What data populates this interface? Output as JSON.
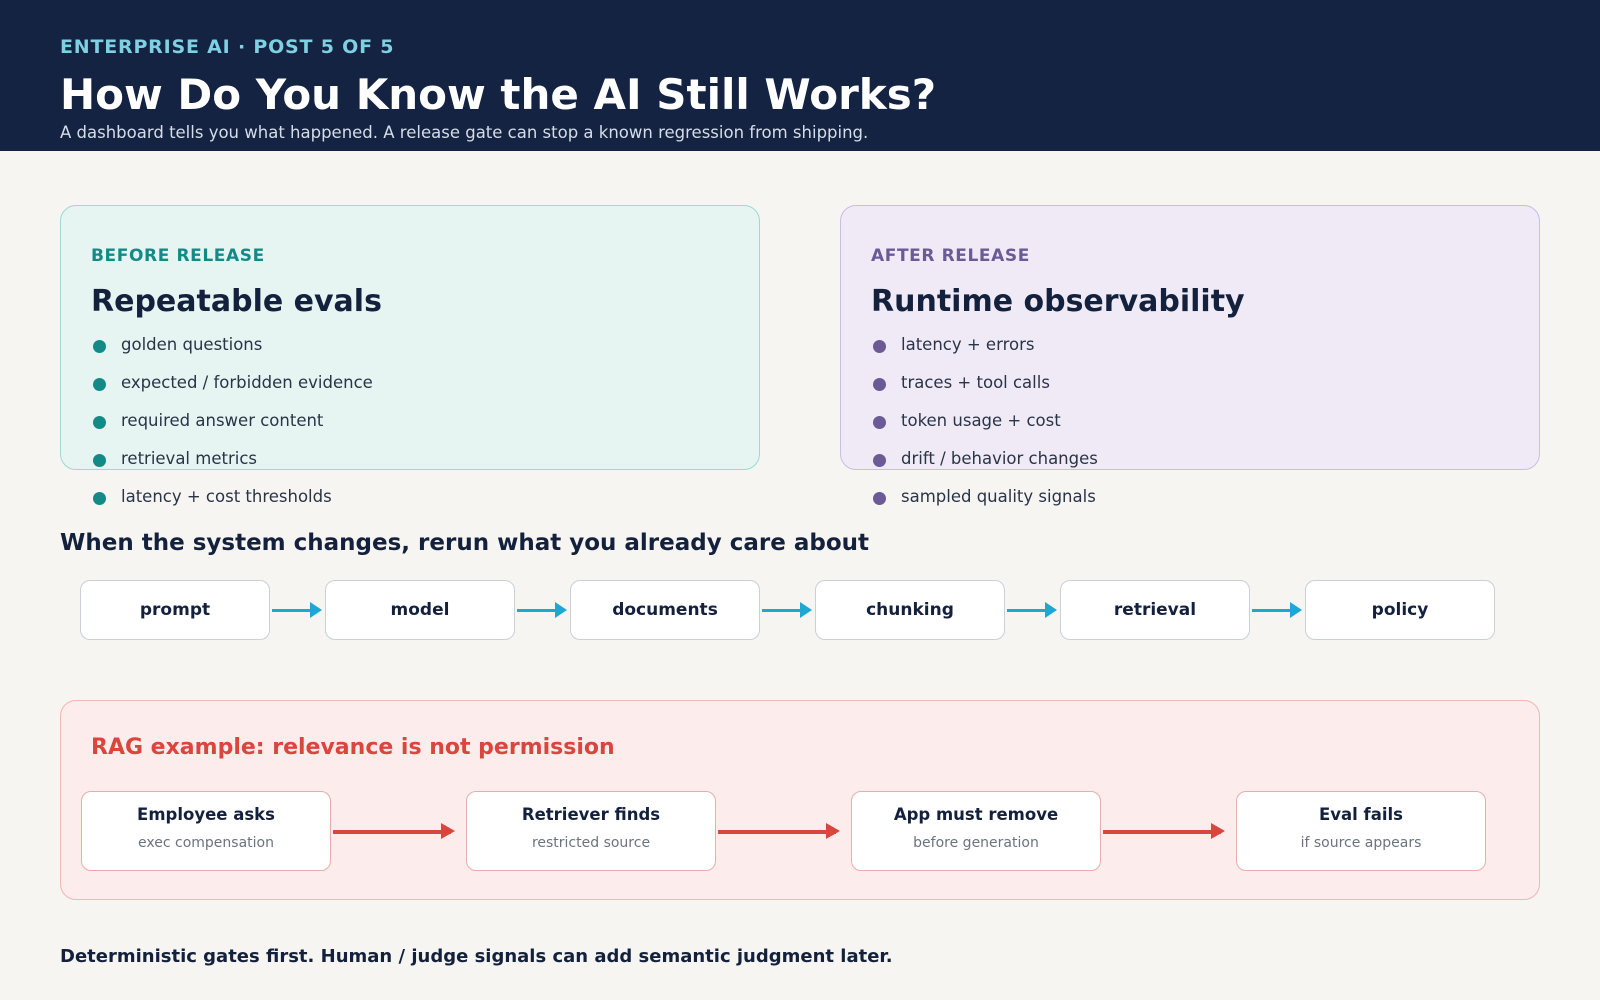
{
  "header": {
    "kicker": "ENTERPRISE AI · POST 5 OF 5",
    "title": "How Do You Know the AI Still Works?",
    "subtitle": "A dashboard tells you what happened. A release gate can stop a known regression from shipping."
  },
  "before_panel": {
    "kicker": "BEFORE RELEASE",
    "title": "Repeatable evals",
    "items": [
      "golden questions",
      "expected / forbidden evidence",
      "required answer content",
      "retrieval metrics",
      "latency + cost thresholds"
    ]
  },
  "after_panel": {
    "kicker": "AFTER RELEASE",
    "title": "Runtime observability",
    "items": [
      "latency + errors",
      "traces + tool calls",
      "token usage + cost",
      "drift / behavior changes",
      "sampled quality signals"
    ]
  },
  "change_flow": {
    "title": "When the system changes, rerun what you already care about",
    "steps": [
      "prompt",
      "model",
      "documents",
      "chunking",
      "retrieval",
      "policy"
    ]
  },
  "rag_example": {
    "title": "RAG example: relevance is not permission",
    "steps": [
      {
        "title": "Employee asks",
        "detail": "exec compensation"
      },
      {
        "title": "Retriever finds",
        "detail": "restricted source"
      },
      {
        "title": "App must remove",
        "detail": "before generation"
      },
      {
        "title": "Eval fails",
        "detail": "if source appears"
      }
    ]
  },
  "footer": "Deterministic gates first. Human / judge signals can add semantic judgment later.",
  "colors": {
    "header_bg": "#132341",
    "before_accent": "#148a87",
    "after_accent": "#6b5a95",
    "flow_arrow": "#1ea7d4",
    "rag_accent": "#d9463e"
  }
}
